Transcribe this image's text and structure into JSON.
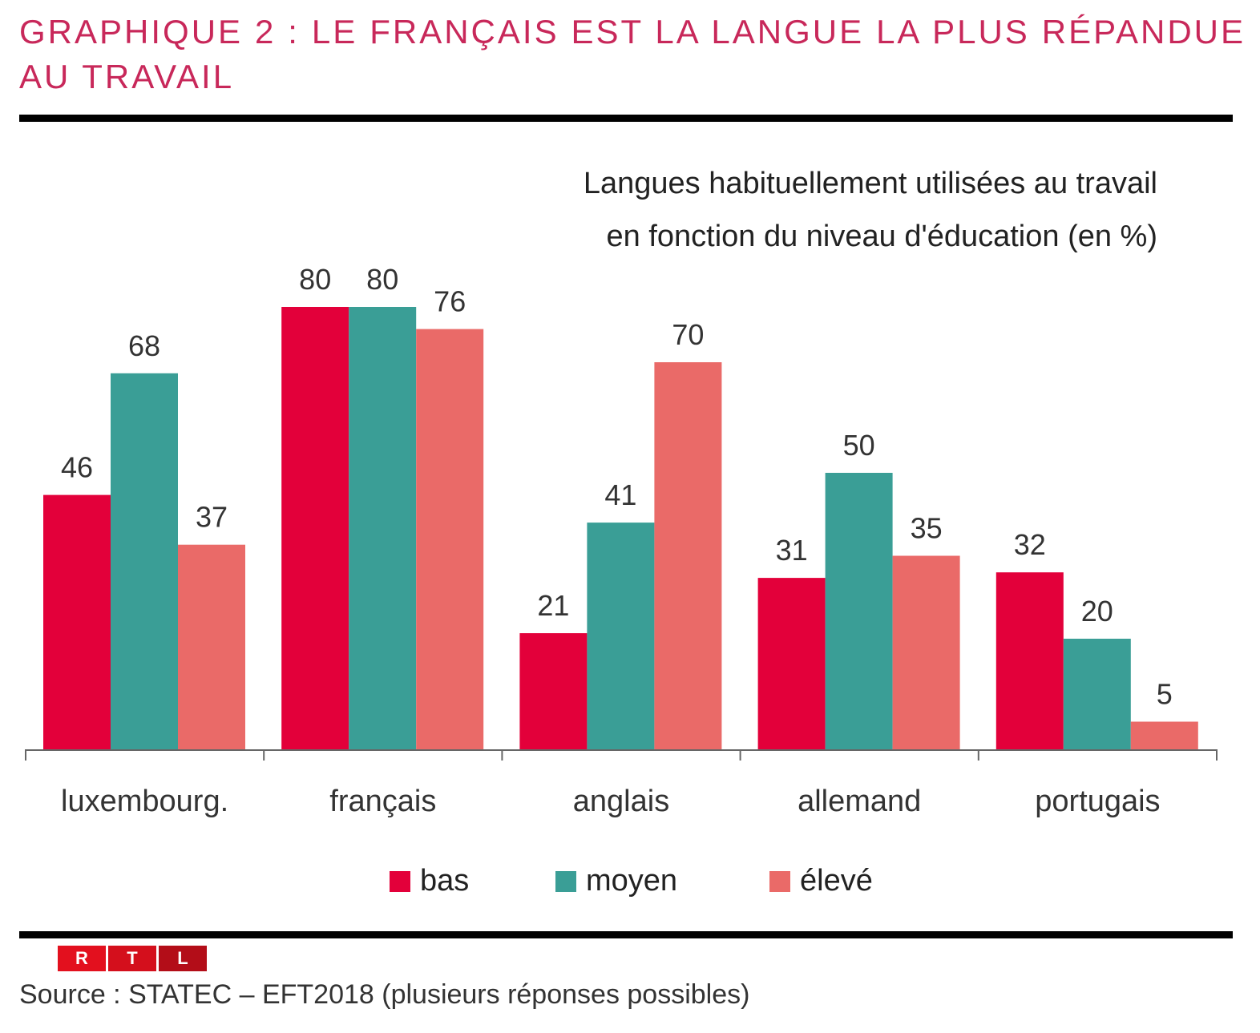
{
  "header": {
    "title": "GRAPHIQUE 2 : LE FRANÇAIS EST LA LANGUE LA PLUS RÉPANDUE AU TRAVAIL"
  },
  "colors": {
    "title": "#c8285a",
    "bas": "#e3003a",
    "moyen": "#3a9e96",
    "eleve": "#ea6a68",
    "axis": "#666666",
    "rule": "#000000"
  },
  "chart_data": {
    "type": "bar",
    "title": "Langues habituellement utilisées au travail en fonction du niveau d'éducation (en %)",
    "title_lines": [
      "Langues habituellement utilisées au travail",
      "en fonction du niveau d'éducation (en %)"
    ],
    "xlabel": "",
    "ylabel": "",
    "ylim": [
      0,
      85
    ],
    "grid": false,
    "legend_position": "bottom",
    "categories": [
      "luxembourg.",
      "français",
      "anglais",
      "allemand",
      "portugais"
    ],
    "series": [
      {
        "name": "bas",
        "key": "bas",
        "values": [
          46,
          80,
          21,
          31,
          32
        ]
      },
      {
        "name": "moyen",
        "key": "moyen",
        "values": [
          68,
          80,
          41,
          50,
          20
        ]
      },
      {
        "name": "élevé",
        "key": "eleve",
        "values": [
          37,
          76,
          70,
          35,
          5
        ]
      }
    ]
  },
  "legend": {
    "items": [
      {
        "label": "bas",
        "key": "bas"
      },
      {
        "label": "moyen",
        "key": "moyen"
      },
      {
        "label": "élevé",
        "key": "eleve"
      }
    ]
  },
  "footer": {
    "logo_letters": [
      "R",
      "T",
      "L"
    ],
    "source": "Source : STATEC – EFT2018 (plusieurs réponses possibles)"
  }
}
